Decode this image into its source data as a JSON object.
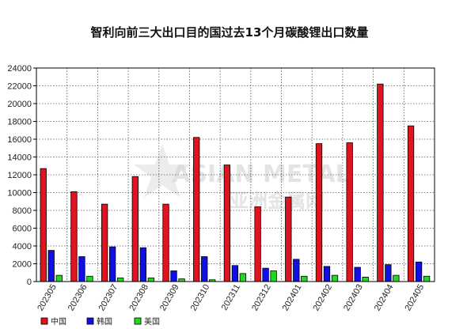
{
  "chart_data": {
    "type": "bar",
    "title": "智利向前三大出口目的国过去13个月碳酸锂出口数量",
    "categories": [
      "202305",
      "202306",
      "202307",
      "202308",
      "202309",
      "202310",
      "202311",
      "202312",
      "202401",
      "202402",
      "202403",
      "202404",
      "202405"
    ],
    "series": [
      {
        "name": "中国",
        "color": "#e0141e",
        "values": [
          12700,
          10100,
          8700,
          11800,
          8700,
          16200,
          13100,
          8400,
          9500,
          15500,
          15600,
          22200,
          17500
        ]
      },
      {
        "name": "韩国",
        "color": "#1010e6",
        "values": [
          3500,
          2800,
          3900,
          3800,
          1200,
          2800,
          1800,
          1500,
          2500,
          1700,
          1600,
          1900,
          2200
        ]
      },
      {
        "name": "美国",
        "color": "#22d822",
        "values": [
          700,
          600,
          400,
          400,
          300,
          200,
          900,
          1200,
          600,
          700,
          500,
          700,
          600
        ]
      }
    ],
    "ylim": [
      0,
      24000
    ],
    "yticks": [
      0,
      2000,
      4000,
      6000,
      8000,
      10000,
      12000,
      14000,
      16000,
      18000,
      20000,
      22000,
      24000
    ],
    "grid": true,
    "legend_position": "bottom-left"
  },
  "watermark": {
    "main": "ASIAN METAL",
    "sub": "亚洲金属网"
  }
}
